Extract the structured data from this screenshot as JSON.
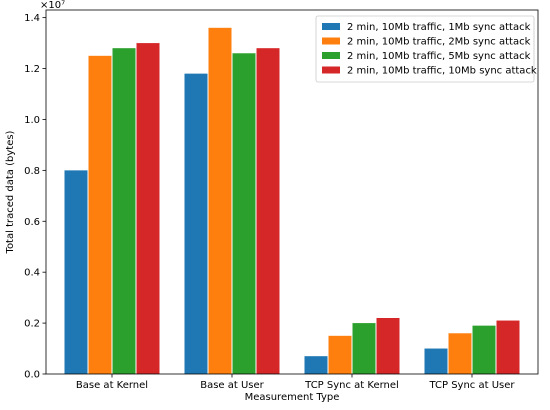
{
  "chart_data": {
    "type": "bar",
    "categories": [
      "Base at Kernel",
      "Base at User",
      "TCP Sync at Kernel",
      "TCP Sync at User"
    ],
    "series": [
      {
        "name": "2 min, 10Mb traffic, 1Mb sync attack",
        "color": "#1f77b4",
        "values": [
          8000000,
          11800000,
          700000,
          1000000
        ]
      },
      {
        "name": "2 min, 10Mb traffic, 2Mb sync attack",
        "color": "#ff7f0e",
        "values": [
          12500000,
          13600000,
          1500000,
          1600000
        ]
      },
      {
        "name": "2 min, 10Mb traffic, 5Mb sync attack",
        "color": "#2ca02c",
        "values": [
          12800000,
          12600000,
          2000000,
          1900000
        ]
      },
      {
        "name": "2 min, 10Mb traffic, 10Mb sync attack",
        "color": "#d62728",
        "values": [
          13000000,
          12800000,
          2200000,
          2100000
        ]
      }
    ],
    "xlabel": "Measurement Type",
    "ylabel": "Total traced data (bytes)",
    "y_multiplier_label": "×10⁷",
    "ylim": [
      0,
      14300000
    ],
    "yticks": [
      0,
      2000000,
      4000000,
      6000000,
      8000000,
      10000000,
      12000000,
      14000000
    ],
    "ytick_labels": [
      "0.0",
      "0.2",
      "0.4",
      "0.6",
      "0.8",
      "1.0",
      "1.2",
      "1.4"
    ],
    "grid": false,
    "legend_position": "top-right"
  }
}
